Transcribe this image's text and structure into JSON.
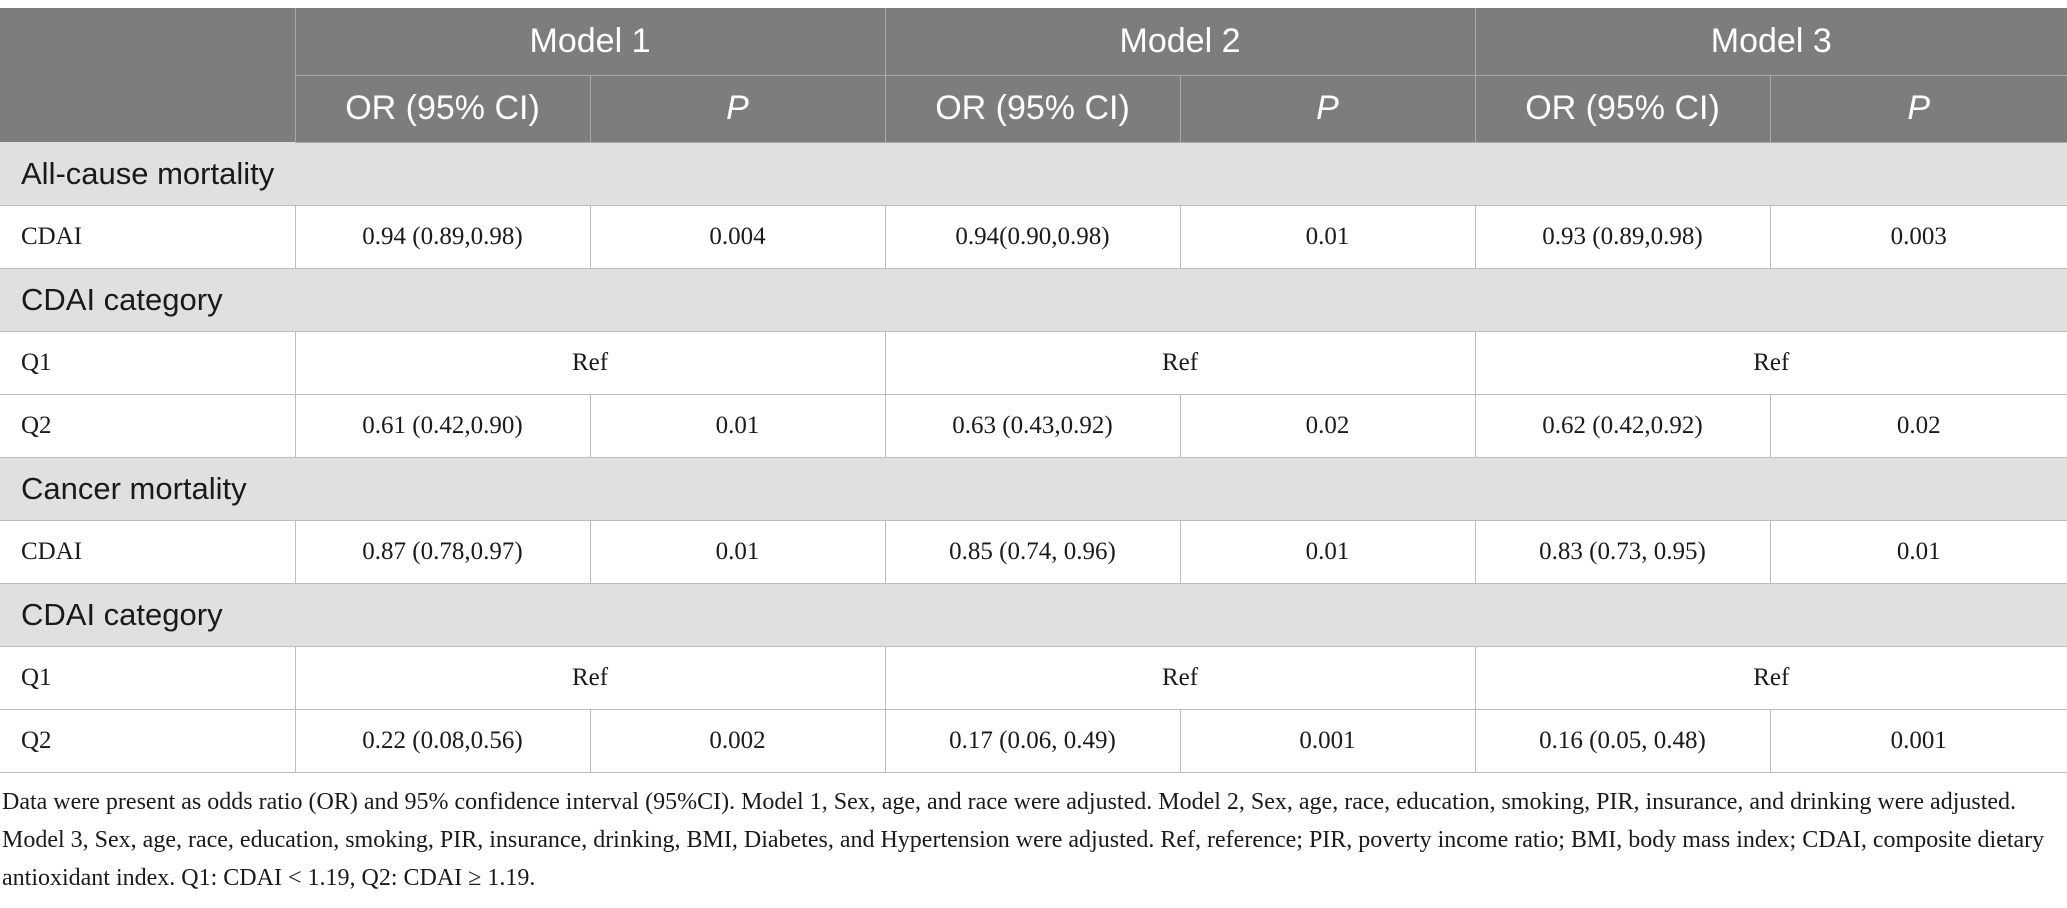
{
  "header": {
    "models": [
      "Model 1",
      "Model 2",
      "Model 3"
    ],
    "or_label": "OR (95% CI)",
    "p_label": "P"
  },
  "sections": [
    {
      "title": "All-cause mortality",
      "rows": [
        {
          "label": "CDAI",
          "m1_or": "0.94 (0.89,0.98)",
          "m1_p": "0.004",
          "m2_or": "0.94(0.90,0.98)",
          "m2_p": "0.01",
          "m3_or": "0.93 (0.89,0.98)",
          "m3_p": "0.003"
        }
      ]
    },
    {
      "title": "CDAI category",
      "rows": [
        {
          "label": "Q1",
          "ref": "Ref"
        },
        {
          "label": "Q2",
          "m1_or": "0.61 (0.42,0.90)",
          "m1_p": "0.01",
          "m2_or": "0.63 (0.43,0.92)",
          "m2_p": "0.02",
          "m3_or": "0.62 (0.42,0.92)",
          "m3_p": "0.02"
        }
      ]
    },
    {
      "title": "Cancer mortality",
      "rows": [
        {
          "label": "CDAI",
          "m1_or": "0.87 (0.78,0.97)",
          "m1_p": "0.01",
          "m2_or": "0.85 (0.74, 0.96)",
          "m2_p": "0.01",
          "m3_or": "0.83 (0.73, 0.95)",
          "m3_p": "0.01"
        }
      ]
    },
    {
      "title": "CDAI category",
      "rows": [
        {
          "label": "Q1",
          "ref": "Ref"
        },
        {
          "label": "Q2",
          "m1_or": "0.22 (0.08,0.56)",
          "m1_p": "0.002",
          "m2_or": "0.17 (0.06, 0.49)",
          "m2_p": "0.001",
          "m3_or": "0.16 (0.05, 0.48)",
          "m3_p": "0.001"
        }
      ]
    }
  ],
  "footnote": "Data were present as odds ratio (OR) and 95% confidence interval (95%CI). Model 1, Sex, age, and race were adjusted. Model 2, Sex, age, race, education, smoking, PIR, insurance, and drinking were adjusted. Model 3, Sex, age, race, education, smoking, PIR, insurance, drinking, BMI, Diabetes, and Hypertension were adjusted. Ref, reference; PIR, poverty income ratio; BMI, body mass index; CDAI, composite dietary antioxidant index. Q1: CDAI < 1.19, Q2: CDAI ≥ 1.19.",
  "colors": {
    "header_bg": "#7d7e7c",
    "section_bg": "#e0e0df",
    "border": "#bdbdbc"
  }
}
